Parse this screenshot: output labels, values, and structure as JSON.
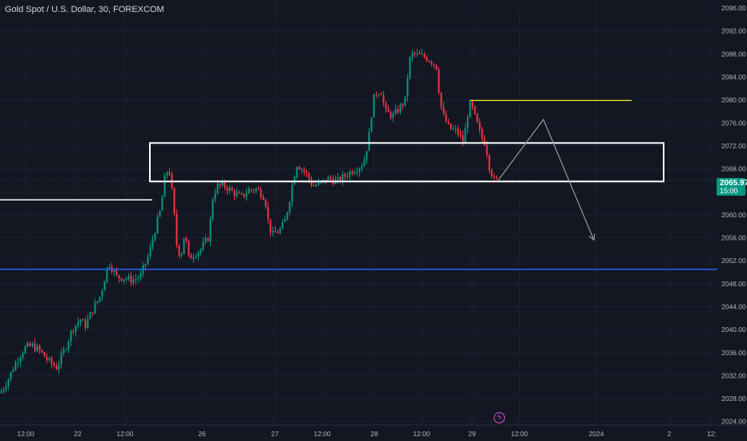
{
  "header": {
    "title": "Gold Spot / U.S. Dollar, 30, FOREXCOM"
  },
  "price_badge": {
    "price": "2065.97",
    "countdown": "15:00",
    "color": "#089981"
  },
  "colors": {
    "up": "#089981",
    "down": "#f23645",
    "yellow_line": "#f2e81b",
    "blue_line": "#2962ff",
    "projection": "#9598a1",
    "box": "#ffffff"
  },
  "icons": {
    "event": "lightning-icon"
  },
  "chart_data": {
    "type": "candlestick",
    "title": "Gold Spot / U.S. Dollar, 30, FOREXCOM",
    "y_ticks": [
      2024,
      2028,
      2032,
      2036,
      2040,
      2044,
      2048,
      2052,
      2056,
      2060,
      2064,
      2068,
      2072,
      2076,
      2080,
      2084,
      2088,
      2092,
      2096
    ],
    "y_tick_labels": [
      "2024.00",
      "2028.00",
      "2032.00",
      "2036.00",
      "2040.00",
      "2044.00",
      "2048.00",
      "2052.00",
      "2056.00",
      "2060.00",
      "2064.00",
      "2068.00",
      "2072.00",
      "2076.00",
      "2080.00",
      "2084.00",
      "2088.00",
      "2092.00",
      "2096.00"
    ],
    "ylim": [
      2023.4,
      2097.4
    ],
    "x_ticks": [
      "12:00",
      "22",
      "12:00",
      "26",
      "27",
      "12:00",
      "28",
      "12:00",
      "29",
      "12:00",
      "2024",
      "2",
      "12:"
    ],
    "close_path": [
      [
        0,
        2029.0
      ],
      [
        10,
        2031.5
      ],
      [
        20,
        2034.5
      ],
      [
        30,
        2036.8
      ],
      [
        40,
        2037.2
      ],
      [
        50,
        2036.2
      ],
      [
        60,
        2034.5
      ],
      [
        70,
        2033.4
      ],
      [
        80,
        2036.5
      ],
      [
        90,
        2040.2
      ],
      [
        100,
        2041.8
      ],
      [
        105,
        2040.5
      ],
      [
        115,
        2043.4
      ],
      [
        125,
        2046.0
      ],
      [
        135,
        2051.8
      ],
      [
        145,
        2049.2
      ],
      [
        155,
        2049.0
      ],
      [
        165,
        2048.6
      ],
      [
        175,
        2049.4
      ],
      [
        185,
        2053.0
      ],
      [
        195,
        2058.5
      ],
      [
        200,
        2061.0
      ],
      [
        205,
        2066.2
      ],
      [
        210,
        2068.5
      ],
      [
        215,
        2063.0
      ],
      [
        220,
        2054.8
      ],
      [
        225,
        2052.6
      ],
      [
        230,
        2057.0
      ],
      [
        235,
        2052.4
      ],
      [
        240,
        2053.0
      ],
      [
        250,
        2054.0
      ],
      [
        260,
        2056.2
      ],
      [
        265,
        2063.0
      ],
      [
        270,
        2065.0
      ],
      [
        280,
        2065.0
      ],
      [
        290,
        2064.0
      ],
      [
        300,
        2063.0
      ],
      [
        310,
        2064.3
      ],
      [
        320,
        2064.5
      ],
      [
        330,
        2063.0
      ],
      [
        335,
        2058.0
      ],
      [
        340,
        2056.5
      ],
      [
        350,
        2057.5
      ],
      [
        355,
        2059.0
      ],
      [
        360,
        2062.0
      ],
      [
        365,
        2066.0
      ],
      [
        370,
        2068.8
      ],
      [
        380,
        2067.5
      ],
      [
        390,
        2065.0
      ],
      [
        400,
        2065.5
      ],
      [
        410,
        2066.3
      ],
      [
        420,
        2065.8
      ],
      [
        430,
        2066.8
      ],
      [
        440,
        2067.8
      ],
      [
        450,
        2068.5
      ],
      [
        455,
        2070.0
      ],
      [
        460,
        2074.0
      ],
      [
        465,
        2080.0
      ],
      [
        470,
        2081.5
      ],
      [
        475,
        2081.5
      ],
      [
        480,
        2078.0
      ],
      [
        490,
        2077.2
      ],
      [
        500,
        2079.0
      ],
      [
        505,
        2080.0
      ],
      [
        510,
        2086.8
      ],
      [
        515,
        2088.2
      ],
      [
        520,
        2087.8
      ],
      [
        530,
        2087.5
      ],
      [
        540,
        2086.5
      ],
      [
        545,
        2085.5
      ],
      [
        548,
        2080.0
      ],
      [
        552,
        2077.5
      ],
      [
        560,
        2075.0
      ],
      [
        570,
        2074.5
      ],
      [
        578,
        2072.5
      ],
      [
        582,
        2077.0
      ],
      [
        587,
        2079.5
      ],
      [
        592,
        2077.0
      ],
      [
        600,
        2073.5
      ],
      [
        605,
        2072.5
      ],
      [
        610,
        2068.5
      ],
      [
        616,
        2066.0
      ],
      [
        621,
        2066.0
      ]
    ],
    "last_price": 2065.97,
    "annotations": {
      "box": {
        "x1": 187,
        "x2": 828,
        "top": 2072.5,
        "bottom": 2065.8
      },
      "white_line": {
        "x1": 0,
        "x2": 190,
        "price": 2062.6
      },
      "yellow_line": {
        "x1": 586,
        "x2": 788,
        "price": 2079.9
      },
      "blue_line": {
        "x1": 0,
        "x2": 895,
        "price": 2050.5
      },
      "projection": [
        [
          621,
          2065.9
        ],
        [
          678,
          2076.6
        ],
        [
          741,
          2055.6
        ]
      ]
    }
  }
}
